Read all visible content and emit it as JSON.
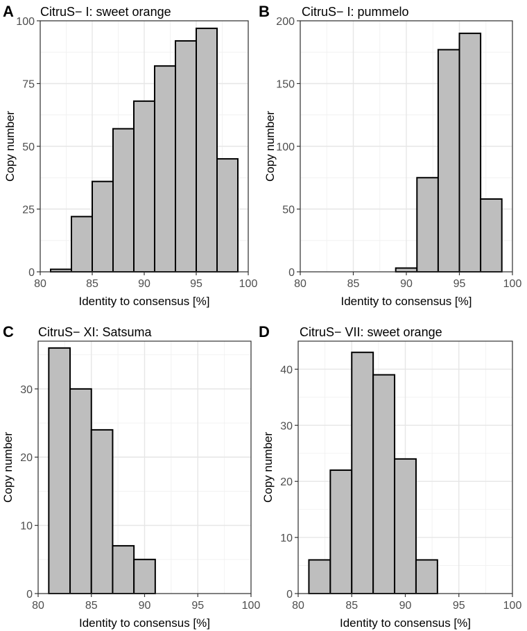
{
  "chart_data": [
    {
      "type": "bar",
      "panel": "A",
      "title": "CitruS− I: sweet orange",
      "xlabel": "Identity to consensus [%]",
      "ylabel": "Copy number",
      "xlim": [
        80,
        100
      ],
      "ylim": [
        0,
        100
      ],
      "xticks": [
        80,
        85,
        90,
        95,
        100
      ],
      "yticks": [
        0,
        25,
        50,
        75,
        100
      ],
      "bin_width": 2,
      "bins": [
        {
          "x0": 81,
          "x1": 83,
          "value": 1
        },
        {
          "x0": 83,
          "x1": 85,
          "value": 22
        },
        {
          "x0": 85,
          "x1": 87,
          "value": 36
        },
        {
          "x0": 87,
          "x1": 89,
          "value": 57
        },
        {
          "x0": 89,
          "x1": 91,
          "value": 68
        },
        {
          "x0": 91,
          "x1": 93,
          "value": 82
        },
        {
          "x0": 93,
          "x1": 95,
          "value": 92
        },
        {
          "x0": 95,
          "x1": 97,
          "value": 97
        },
        {
          "x0": 97,
          "x1": 99,
          "value": 45
        }
      ],
      "grid": true
    },
    {
      "type": "bar",
      "panel": "B",
      "title": "CitruS− I: pummelo",
      "xlabel": "Identity to consensus [%]",
      "ylabel": "Copy number",
      "xlim": [
        80,
        100
      ],
      "ylim": [
        0,
        200
      ],
      "xticks": [
        80,
        85,
        90,
        95,
        100
      ],
      "yticks": [
        0,
        50,
        100,
        150,
        200
      ],
      "bin_width": 2,
      "bins": [
        {
          "x0": 81,
          "x1": 83,
          "value": 0
        },
        {
          "x0": 83,
          "x1": 85,
          "value": 0
        },
        {
          "x0": 85,
          "x1": 87,
          "value": 0
        },
        {
          "x0": 87,
          "x1": 89,
          "value": 0
        },
        {
          "x0": 89,
          "x1": 91,
          "value": 3
        },
        {
          "x0": 91,
          "x1": 93,
          "value": 75
        },
        {
          "x0": 93,
          "x1": 95,
          "value": 177
        },
        {
          "x0": 95,
          "x1": 97,
          "value": 190
        },
        {
          "x0": 97,
          "x1": 99,
          "value": 58
        }
      ],
      "grid": true
    },
    {
      "type": "bar",
      "panel": "C",
      "title": "CitruS− XI: Satsuma",
      "xlabel": "Identity to consensus [%]",
      "ylabel": "Copy number",
      "xlim": [
        80,
        100
      ],
      "ylim": [
        0,
        37
      ],
      "xticks": [
        80,
        85,
        90,
        95,
        100
      ],
      "yticks": [
        0,
        10,
        20,
        30
      ],
      "bin_width": 2,
      "bins": [
        {
          "x0": 81,
          "x1": 83,
          "value": 36
        },
        {
          "x0": 83,
          "x1": 85,
          "value": 30
        },
        {
          "x0": 85,
          "x1": 87,
          "value": 24
        },
        {
          "x0": 87,
          "x1": 89,
          "value": 7
        },
        {
          "x0": 89,
          "x1": 91,
          "value": 5
        },
        {
          "x0": 91,
          "x1": 93,
          "value": 0
        },
        {
          "x0": 93,
          "x1": 95,
          "value": 0
        },
        {
          "x0": 95,
          "x1": 97,
          "value": 0
        },
        {
          "x0": 97,
          "x1": 99,
          "value": 0
        }
      ],
      "grid": true
    },
    {
      "type": "bar",
      "panel": "D",
      "title": "CitruS− VII: sweet orange",
      "xlabel": "Identity to consensus [%]",
      "ylabel": "Copy number",
      "xlim": [
        80,
        100
      ],
      "ylim": [
        0,
        45
      ],
      "xticks": [
        80,
        85,
        90,
        95,
        100
      ],
      "yticks": [
        0,
        10,
        20,
        30,
        40
      ],
      "bin_width": 2,
      "bins": [
        {
          "x0": 81,
          "x1": 83,
          "value": 6
        },
        {
          "x0": 83,
          "x1": 85,
          "value": 22
        },
        {
          "x0": 85,
          "x1": 87,
          "value": 43
        },
        {
          "x0": 87,
          "x1": 89,
          "value": 39
        },
        {
          "x0": 89,
          "x1": 91,
          "value": 24
        },
        {
          "x0": 91,
          "x1": 93,
          "value": 6
        },
        {
          "x0": 93,
          "x1": 95,
          "value": 0
        },
        {
          "x0": 95,
          "x1": 97,
          "value": 0
        },
        {
          "x0": 97,
          "x1": 99,
          "value": 0
        }
      ],
      "grid": true
    }
  ]
}
